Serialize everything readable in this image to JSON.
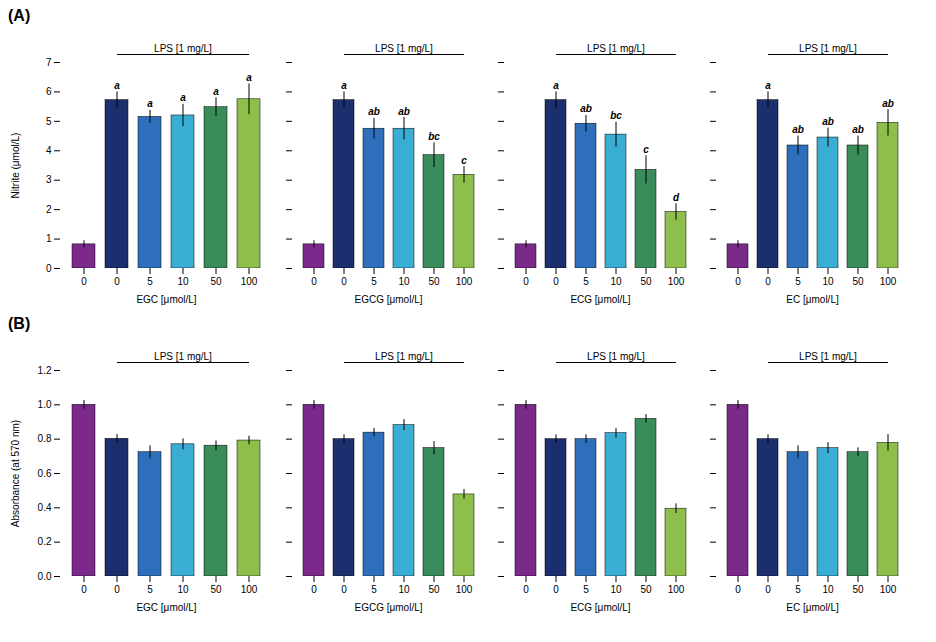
{
  "chart_data": [
    {
      "type": "bar",
      "title": "(A)",
      "categories": [
        "0",
        "0",
        "5",
        "10",
        "50",
        "100"
      ],
      "values": [
        0.82,
        5.72,
        5.15,
        5.2,
        5.48,
        5.75
      ],
      "errors": [
        0.12,
        0.28,
        0.22,
        0.38,
        0.32,
        0.52
      ],
      "sig_labels": [
        null,
        "a",
        "a",
        "a",
        "a",
        "a"
      ],
      "colors": [
        "#7B2A8B",
        "#1B2F6E",
        "#2E6FBB",
        "#3AADD4",
        "#3A8C5A",
        "#8DBF4A"
      ],
      "xlabel": "EGC [μmol/L]",
      "ylabel": "Nitrite (μmol/L)",
      "annotation": "LPS [1 mg/L]",
      "ylim": [
        0,
        7
      ],
      "yticks": [
        0,
        1,
        2,
        3,
        4,
        5,
        6,
        7
      ]
    },
    {
      "type": "bar",
      "categories": [
        "0",
        "0",
        "5",
        "10",
        "50",
        "100"
      ],
      "values": [
        0.82,
        5.72,
        4.75,
        4.75,
        3.85,
        3.18
      ],
      "errors": [
        0.12,
        0.28,
        0.35,
        0.38,
        0.42,
        0.28
      ],
      "sig_labels": [
        null,
        "a",
        "ab",
        "ab",
        "bc",
        "c"
      ],
      "colors": [
        "#7B2A8B",
        "#1B2F6E",
        "#2E6FBB",
        "#3AADD4",
        "#3A8C5A",
        "#8DBF4A"
      ],
      "xlabel": "EGCG [μmol/L]",
      "annotation": "LPS [1 mg/L]",
      "ylim": [
        0,
        7
      ],
      "yticks": [
        0,
        1,
        2,
        3,
        4,
        5,
        6,
        7
      ],
      "tick_labels": "x"
    },
    {
      "type": "bar",
      "categories": [
        "0",
        "0",
        "5",
        "10",
        "50",
        "100"
      ],
      "values": [
        0.82,
        5.72,
        4.92,
        4.55,
        3.35,
        1.92
      ],
      "errors": [
        0.12,
        0.28,
        0.28,
        0.42,
        0.48,
        0.28
      ],
      "sig_labels": [
        null,
        "a",
        "ab",
        "bc",
        "c",
        "d"
      ],
      "colors": [
        "#7B2A8B",
        "#1B2F6E",
        "#2E6FBB",
        "#3AADD4",
        "#3A8C5A",
        "#8DBF4A"
      ],
      "xlabel": "ECG [μmol/L]",
      "annotation": "LPS [1 mg/L]",
      "ylim": [
        0,
        7
      ],
      "yticks": [
        0,
        1,
        2,
        3,
        4,
        5,
        6,
        7
      ],
      "tick_labels": "x"
    },
    {
      "type": "bar",
      "categories": [
        "0",
        "0",
        "5",
        "10",
        "50",
        "100"
      ],
      "values": [
        0.82,
        5.72,
        4.18,
        4.45,
        4.18,
        4.95
      ],
      "errors": [
        0.12,
        0.28,
        0.32,
        0.32,
        0.32,
        0.45
      ],
      "sig_labels": [
        null,
        "a",
        "ab",
        "ab",
        "ab",
        "ab"
      ],
      "colors": [
        "#7B2A8B",
        "#1B2F6E",
        "#2E6FBB",
        "#3AADD4",
        "#3A8C5A",
        "#8DBF4A"
      ],
      "xlabel": "EC [μmol/L]",
      "annotation": "LPS [1 mg/L]",
      "ylim": [
        0,
        7
      ],
      "yticks": [
        0,
        1,
        2,
        3,
        4,
        5,
        6,
        7
      ],
      "tick_labels": "x"
    },
    {
      "type": "bar",
      "title": "(B)",
      "categories": [
        "0",
        "0",
        "5",
        "10",
        "50",
        "100"
      ],
      "values": [
        1.0,
        0.802,
        0.724,
        0.77,
        0.762,
        0.792
      ],
      "errors": [
        0.025,
        0.025,
        0.038,
        0.032,
        0.028,
        0.025
      ],
      "colors": [
        "#7B2A8B",
        "#1B2F6E",
        "#2E6FBB",
        "#3AADD4",
        "#3A8C5A",
        "#8DBF4A"
      ],
      "xlabel": "EGC [μmol/L]",
      "ylabel": "Absorbance (at 570 nm)",
      "annotation": "LPS [1 mg/L]",
      "ylim": [
        0,
        1.2
      ],
      "yticks": [
        {
          "value": 0,
          "label": "0.0"
        },
        0.2,
        0.4,
        0.6,
        0.8,
        {
          "value": 1.0,
          "label": "1.0"
        },
        1.2
      ]
    },
    {
      "type": "bar",
      "categories": [
        "0",
        "0",
        "5",
        "10",
        "50",
        "100"
      ],
      "values": [
        1.0,
        0.8,
        0.838,
        0.882,
        0.748,
        0.478
      ],
      "errors": [
        0.025,
        0.025,
        0.025,
        0.032,
        0.038,
        0.028
      ],
      "colors": [
        "#7B2A8B",
        "#1B2F6E",
        "#2E6FBB",
        "#3AADD4",
        "#3A8C5A",
        "#8DBF4A"
      ],
      "xlabel": "EGCG [μmol/L]",
      "annotation": "LPS [1 mg/L]",
      "ylim": [
        0,
        1.2
      ],
      "yticks": [
        {
          "value": 0,
          "label": "0.0"
        },
        0.2,
        0.4,
        0.6,
        0.8,
        {
          "value": 1.0,
          "label": "1.0"
        },
        1.2
      ],
      "tick_labels": "x"
    },
    {
      "type": "bar",
      "categories": [
        "0",
        "0",
        "5",
        "10",
        "50",
        "100"
      ],
      "values": [
        1.0,
        0.8,
        0.8,
        0.835,
        0.918,
        0.395
      ],
      "errors": [
        0.025,
        0.025,
        0.025,
        0.028,
        0.025,
        0.028
      ],
      "colors": [
        "#7B2A8B",
        "#1B2F6E",
        "#2E6FBB",
        "#3AADD4",
        "#3A8C5A",
        "#8DBF4A"
      ],
      "xlabel": "ECG [μmol/L]",
      "annotation": "LPS [1 mg/L]",
      "ylim": [
        0,
        1.2
      ],
      "yticks": [
        {
          "value": 0,
          "label": "0.0"
        },
        0.2,
        0.4,
        0.6,
        0.8,
        {
          "value": 1.0,
          "label": "1.0"
        },
        1.2
      ],
      "tick_labels": "x"
    },
    {
      "type": "bar",
      "categories": [
        "0",
        "0",
        "5",
        "10",
        "50",
        "100"
      ],
      "values": [
        1.0,
        0.8,
        0.724,
        0.748,
        0.724,
        0.778
      ],
      "errors": [
        0.025,
        0.025,
        0.038,
        0.032,
        0.025,
        0.048
      ],
      "colors": [
        "#7B2A8B",
        "#1B2F6E",
        "#2E6FBB",
        "#3AADD4",
        "#3A8C5A",
        "#8DBF4A"
      ],
      "xlabel": "EC [μmol/L]",
      "annotation": "LPS [1 mg/L]",
      "ylim": [
        0,
        1.2
      ],
      "yticks": [
        {
          "value": 0,
          "label": "0.0"
        },
        0.2,
        0.4,
        0.6,
        0.8,
        {
          "value": 1.0,
          "label": "1.0"
        },
        1.2
      ],
      "tick_labels": "x"
    }
  ]
}
